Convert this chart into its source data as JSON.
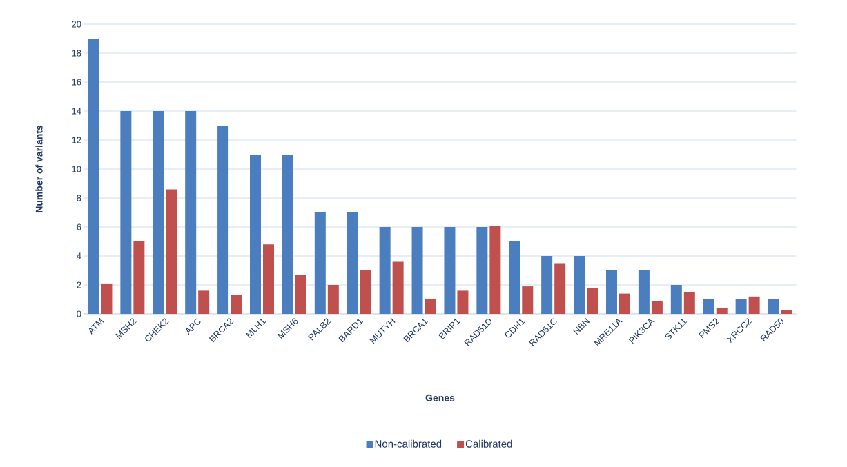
{
  "chart_data": {
    "type": "bar",
    "xlabel": "Genes",
    "ylabel": "Number of variants",
    "categories": [
      "ATM",
      "MSH2",
      "CHEK2",
      "APC",
      "BRCA2",
      "MLH1",
      "MSH6",
      "PALB2",
      "BARD1",
      "MUTYH",
      "BRCA1",
      "BRIP1",
      "RAD51D",
      "CDH1",
      "RAD51C",
      "NBN",
      "MRE11A",
      "PIK3CA",
      "STK11",
      "PMS2",
      "XRCC2",
      "RAD50"
    ],
    "series": [
      {
        "name": "Non-calibrated",
        "color": "#4a7ebf",
        "values": [
          19,
          14,
          14,
          14,
          13,
          11,
          11,
          7,
          7,
          6,
          6,
          6,
          6,
          5,
          4,
          4,
          3,
          3,
          2,
          1,
          1,
          1
        ]
      },
      {
        "name": "Calibrated",
        "color": "#c0504d",
        "values": [
          2.1,
          5.0,
          8.6,
          1.6,
          1.3,
          4.8,
          2.7,
          2.0,
          3.0,
          3.6,
          1.05,
          1.6,
          6.1,
          1.9,
          3.5,
          1.8,
          1.4,
          0.9,
          1.5,
          0.4,
          1.2,
          0.25
        ]
      }
    ],
    "ylim": [
      0,
      20
    ],
    "yticks": [
      0,
      2,
      4,
      6,
      8,
      10,
      12,
      14,
      16,
      18,
      20
    ],
    "grid": "y",
    "legend": "bottom"
  }
}
